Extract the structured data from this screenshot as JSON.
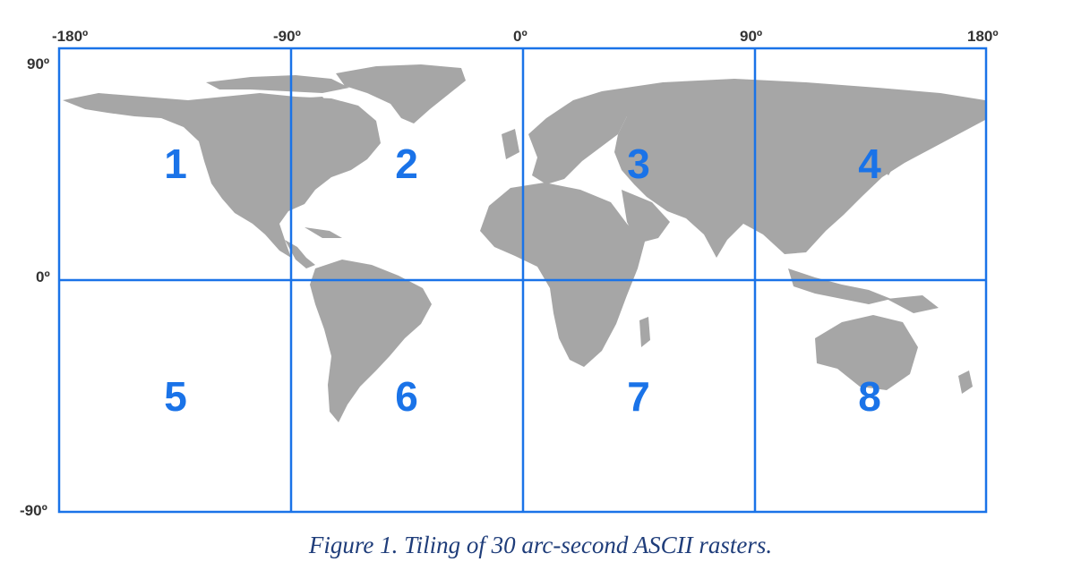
{
  "map": {
    "longitude_labels": [
      "-180º",
      "-90º",
      "0º",
      "90º",
      "180º"
    ],
    "latitude_labels": [
      "90º",
      "0º",
      "-90º"
    ],
    "tiles": [
      "1",
      "2",
      "3",
      "4",
      "5",
      "6",
      "7",
      "8"
    ],
    "colors": {
      "grid": "#1a73e8",
      "tile_label": "#1a73e8",
      "land": "#a6a6a6",
      "ocean": "#ffffff"
    }
  },
  "caption": "Figure 1. Tiling of 30 arc-second ASCII rasters."
}
